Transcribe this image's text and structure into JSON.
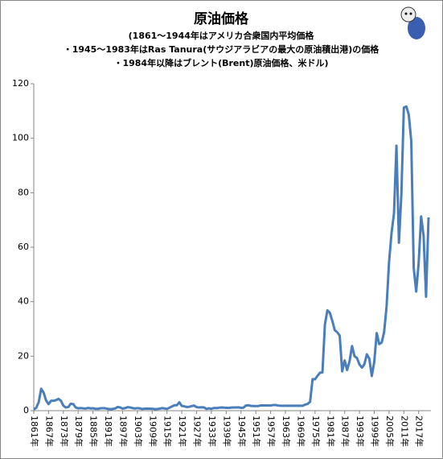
{
  "chart_data": {
    "type": "line",
    "title": "原油価格",
    "subtitle": [
      "(1861～1944年はアメリカ合衆国内平均価格",
      "・1945～1983年はRas Tanura(サウジアラビアの最大の原油積出港)の価格",
      "・1984年以降はブレント(Brent)原油価格、米ドル)"
    ],
    "x": [
      1861,
      1862,
      1863,
      1864,
      1865,
      1866,
      1867,
      1868,
      1869,
      1870,
      1871,
      1872,
      1873,
      1874,
      1875,
      1876,
      1877,
      1878,
      1879,
      1880,
      1881,
      1882,
      1883,
      1884,
      1885,
      1886,
      1887,
      1888,
      1889,
      1890,
      1891,
      1892,
      1893,
      1894,
      1895,
      1896,
      1897,
      1898,
      1899,
      1900,
      1901,
      1902,
      1903,
      1904,
      1905,
      1906,
      1907,
      1908,
      1909,
      1910,
      1911,
      1912,
      1913,
      1914,
      1915,
      1916,
      1917,
      1918,
      1919,
      1920,
      1921,
      1922,
      1923,
      1924,
      1925,
      1926,
      1927,
      1928,
      1929,
      1930,
      1931,
      1932,
      1933,
      1934,
      1935,
      1936,
      1937,
      1938,
      1939,
      1940,
      1941,
      1942,
      1943,
      1944,
      1945,
      1946,
      1947,
      1948,
      1949,
      1950,
      1951,
      1952,
      1953,
      1954,
      1955,
      1956,
      1957,
      1958,
      1959,
      1960,
      1961,
      1962,
      1963,
      1964,
      1965,
      1966,
      1967,
      1968,
      1969,
      1970,
      1971,
      1972,
      1973,
      1974,
      1975,
      1976,
      1977,
      1978,
      1979,
      1980,
      1981,
      1982,
      1983,
      1984,
      1985,
      1986,
      1987,
      1988,
      1989,
      1990,
      1991,
      1992,
      1993,
      1994,
      1995,
      1996,
      1997,
      1998,
      1999,
      2000,
      2001,
      2002,
      2003,
      2004,
      2005,
      2006,
      2007,
      2008,
      2009,
      2010,
      2011,
      2012,
      2013,
      2014,
      2015,
      2016,
      2017,
      2018,
      2019,
      2020,
      2021
    ],
    "series": [
      {
        "name": "原油価格",
        "color": "#4a7ebb",
        "values": [
          0.49,
          1.05,
          3.15,
          8.06,
          6.59,
          3.74,
          2.41,
          3.63,
          3.64,
          3.86,
          4.34,
          3.64,
          1.83,
          1.17,
          1.35,
          2.56,
          2.42,
          1.19,
          0.86,
          0.95,
          0.86,
          0.78,
          1.0,
          0.84,
          0.88,
          0.71,
          0.67,
          0.88,
          0.94,
          0.87,
          0.67,
          0.56,
          0.64,
          0.84,
          1.36,
          1.18,
          0.79,
          0.91,
          1.29,
          1.19,
          0.96,
          0.8,
          0.94,
          0.86,
          0.62,
          0.73,
          0.72,
          0.72,
          0.7,
          0.61,
          0.61,
          0.74,
          0.95,
          0.81,
          0.64,
          1.1,
          1.56,
          1.98,
          2.01,
          3.07,
          1.73,
          1.61,
          1.34,
          1.43,
          1.68,
          1.88,
          1.3,
          1.17,
          1.27,
          1.19,
          0.65,
          0.87,
          0.67,
          1.0,
          0.97,
          1.09,
          1.18,
          1.13,
          1.02,
          1.02,
          1.14,
          1.19,
          1.2,
          1.21,
          1.05,
          1.12,
          1.9,
          1.99,
          1.78,
          1.71,
          1.71,
          1.71,
          1.93,
          1.93,
          1.93,
          1.93,
          1.9,
          2.08,
          2.08,
          1.9,
          1.8,
          1.8,
          1.8,
          1.8,
          1.8,
          1.8,
          1.8,
          1.8,
          1.8,
          1.8,
          2.24,
          2.48,
          3.29,
          11.58,
          11.53,
          12.8,
          13.92,
          14.02,
          31.61,
          36.83,
          35.93,
          32.97,
          29.55,
          28.78,
          27.56,
          14.43,
          18.44,
          14.92,
          18.23,
          23.73,
          20.0,
          19.32,
          16.97,
          15.82,
          17.02,
          20.67,
          19.09,
          12.72,
          17.97,
          28.5,
          24.44,
          25.02,
          28.83,
          38.27,
          54.52,
          65.14,
          72.39,
          97.26,
          61.67,
          79.5,
          111.26,
          111.67,
          108.66,
          98.95,
          52.39,
          43.73,
          54.19,
          71.31,
          64.21,
          41.84,
          70.91
        ]
      }
    ],
    "xlim": [
      1861,
      2021
    ],
    "xticks": [
      {
        "value": 1861,
        "label": "1861年"
      },
      {
        "value": 1867,
        "label": "1867年"
      },
      {
        "value": 1873,
        "label": "1873年"
      },
      {
        "value": 1879,
        "label": "1879年"
      },
      {
        "value": 1885,
        "label": "1885年"
      },
      {
        "value": 1891,
        "label": "1891年"
      },
      {
        "value": 1897,
        "label": "1897年"
      },
      {
        "value": 1903,
        "label": "1903年"
      },
      {
        "value": 1909,
        "label": "1909年"
      },
      {
        "value": 1915,
        "label": "1915年"
      },
      {
        "value": 1921,
        "label": "1921年"
      },
      {
        "value": 1927,
        "label": "1927年"
      },
      {
        "value": 1933,
        "label": "1933年"
      },
      {
        "value": 1939,
        "label": "1939年"
      },
      {
        "value": 1945,
        "label": "1945年"
      },
      {
        "value": 1951,
        "label": "1951年"
      },
      {
        "value": 1957,
        "label": "1957年"
      },
      {
        "value": 1963,
        "label": "1963年"
      },
      {
        "value": 1969,
        "label": "1969年"
      },
      {
        "value": 1975,
        "label": "1975年"
      },
      {
        "value": 1981,
        "label": "1981年"
      },
      {
        "value": 1987,
        "label": "1987年"
      },
      {
        "value": 1993,
        "label": "1993年"
      },
      {
        "value": 1999,
        "label": "1999年"
      },
      {
        "value": 2005,
        "label": "2005年"
      },
      {
        "value": 2011,
        "label": "2011年"
      },
      {
        "value": 2017,
        "label": "2017年"
      }
    ],
    "ylim": [
      0,
      120
    ],
    "yticks": [
      0,
      20,
      40,
      60,
      80,
      100,
      120
    ],
    "grid": false
  }
}
